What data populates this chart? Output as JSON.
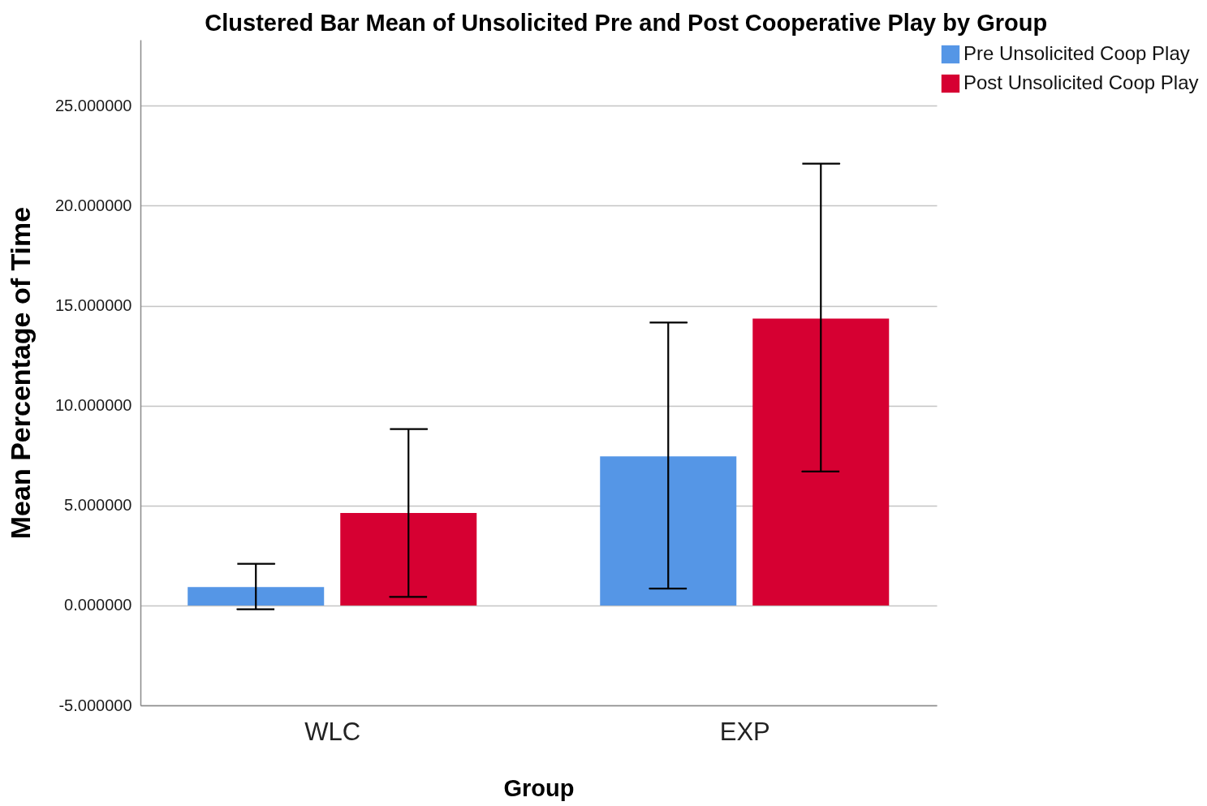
{
  "chart_data": {
    "type": "bar",
    "title": "Clustered Bar Mean of Unsolicited Pre and Post Cooperative Play by Group",
    "xlabel": "Group",
    "ylabel": "Mean Percentage of Time",
    "categories": [
      "WLC",
      "EXP"
    ],
    "series": [
      {
        "name": "Pre Unsolicited Coop Play",
        "color": "#5596e6",
        "values": [
          0.92,
          7.46
        ],
        "errors": [
          [
            -0.19,
            2.08
          ],
          [
            0.84,
            14.15
          ]
        ]
      },
      {
        "name": "Post Unsolicited Coop Play",
        "color": "#d60032",
        "values": [
          4.62,
          14.35
        ],
        "errors": [
          [
            0.43,
            8.82
          ],
          [
            6.7,
            22.1
          ]
        ]
      }
    ],
    "ylim": [
      -5,
      28.3
    ],
    "yticks": [
      {
        "value": -5,
        "label": "-5.000000"
      },
      {
        "value": 0,
        "label": "0.000000"
      },
      {
        "value": 5,
        "label": "5.000000"
      },
      {
        "value": 10,
        "label": "10.000000"
      },
      {
        "value": 15,
        "label": "15.000000"
      },
      {
        "value": 20,
        "label": "20.000000"
      },
      {
        "value": 25,
        "label": "25.000000"
      }
    ],
    "grid": "y",
    "legend": "top right"
  }
}
